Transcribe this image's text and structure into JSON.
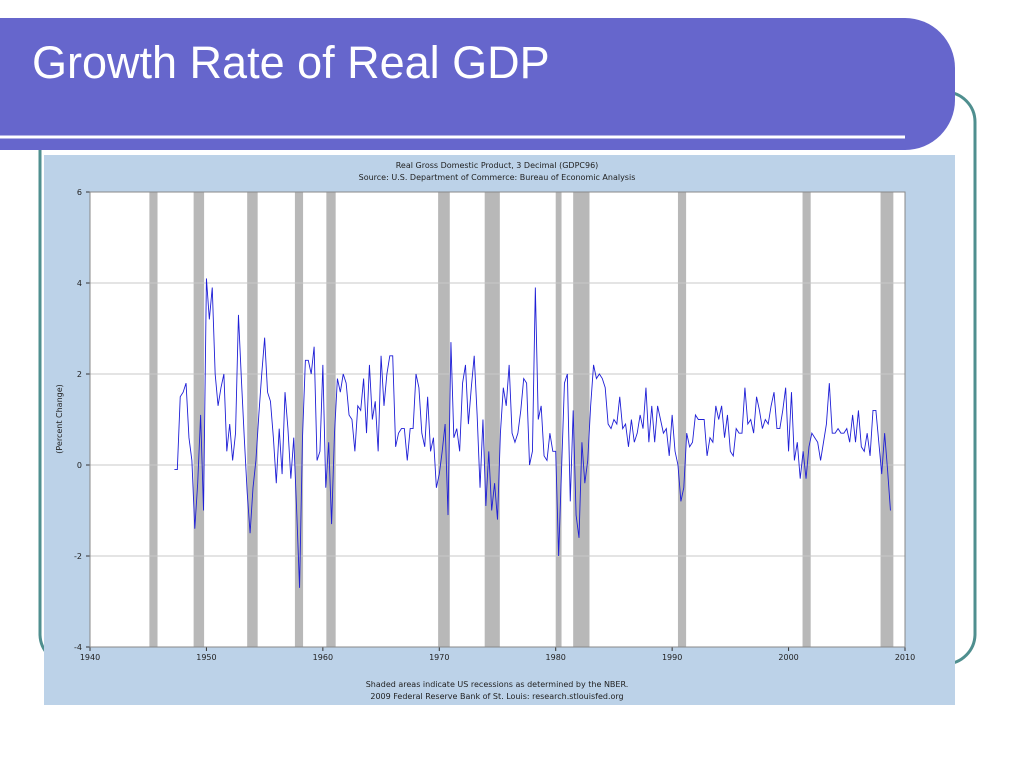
{
  "slide_title": "Growth Rate of Real GDP",
  "chart_data": {
    "type": "line",
    "title": "Real Gross Domestic Product, 3 Decimal (GDPC96)",
    "subtitle": "Source: U.S. Department of Commerce: Bureau of Economic Analysis",
    "y_label": "(Percent Change)",
    "footnote": "Shaded areas indicate US recessions as determined by the NBER.",
    "credit": "2009 Federal Reserve Bank of St. Louis: research.stlouisfed.org",
    "color": "#1f1fd6",
    "recession_color": "#b8b8b8",
    "grid": true,
    "xlim": [
      1940,
      2010
    ],
    "xticks": [
      1940,
      1950,
      1960,
      1970,
      1980,
      1990,
      2000,
      2010
    ],
    "ylim": [
      -4,
      6
    ],
    "yticks": [
      -4,
      -2,
      0,
      2,
      4,
      6
    ],
    "recessions": [
      [
        1945.1,
        1945.8
      ],
      [
        1948.9,
        1949.8
      ],
      [
        1953.5,
        1954.4
      ],
      [
        1957.6,
        1958.3
      ],
      [
        1960.3,
        1961.1
      ],
      [
        1969.9,
        1970.9
      ],
      [
        1973.9,
        1975.2
      ],
      [
        1980.0,
        1980.5
      ],
      [
        1981.5,
        1982.9
      ],
      [
        1990.5,
        1991.2
      ],
      [
        2001.2,
        2001.9
      ],
      [
        2007.9,
        2009.0
      ]
    ],
    "x": [
      1947.25,
      1947.5,
      1947.75,
      1948,
      1948.25,
      1948.5,
      1948.75,
      1949,
      1949.25,
      1949.5,
      1949.75,
      1950,
      1950.25,
      1950.5,
      1950.75,
      1951,
      1951.25,
      1951.5,
      1951.75,
      1952,
      1952.25,
      1952.5,
      1952.75,
      1953,
      1953.25,
      1953.5,
      1953.75,
      1954,
      1954.25,
      1954.5,
      1954.75,
      1955,
      1955.25,
      1955.5,
      1955.75,
      1956,
      1956.25,
      1956.5,
      1956.75,
      1957,
      1957.25,
      1957.5,
      1957.75,
      1958,
      1958.25,
      1958.5,
      1958.75,
      1959,
      1959.25,
      1959.5,
      1959.75,
      1960,
      1960.25,
      1960.5,
      1960.75,
      1961,
      1961.25,
      1961.5,
      1961.75,
      1962,
      1962.25,
      1962.5,
      1962.75,
      1963,
      1963.25,
      1963.5,
      1963.75,
      1964,
      1964.25,
      1964.5,
      1964.75,
      1965,
      1965.25,
      1965.5,
      1965.75,
      1966,
      1966.25,
      1966.5,
      1966.75,
      1967,
      1967.25,
      1967.5,
      1967.75,
      1968,
      1968.25,
      1968.5,
      1968.75,
      1969,
      1969.25,
      1969.5,
      1969.75,
      1970,
      1970.25,
      1970.5,
      1970.75,
      1971,
      1971.25,
      1971.5,
      1971.75,
      1972,
      1972.25,
      1972.5,
      1972.75,
      1973,
      1973.25,
      1973.5,
      1973.75,
      1974,
      1974.25,
      1974.5,
      1974.75,
      1975,
      1975.25,
      1975.5,
      1975.75,
      1976,
      1976.25,
      1976.5,
      1976.75,
      1977,
      1977.25,
      1977.5,
      1977.75,
      1978,
      1978.25,
      1978.5,
      1978.75,
      1979,
      1979.25,
      1979.5,
      1979.75,
      1980,
      1980.25,
      1980.5,
      1980.75,
      1981,
      1981.25,
      1981.5,
      1981.75,
      1982,
      1982.25,
      1982.5,
      1982.75,
      1983,
      1983.25,
      1983.5,
      1983.75,
      1984,
      1984.25,
      1984.5,
      1984.75,
      1985,
      1985.25,
      1985.5,
      1985.75,
      1986,
      1986.25,
      1986.5,
      1986.75,
      1987,
      1987.25,
      1987.5,
      1987.75,
      1988,
      1988.25,
      1988.5,
      1988.75,
      1989,
      1989.25,
      1989.5,
      1989.75,
      1990,
      1990.25,
      1990.5,
      1990.75,
      1991,
      1991.25,
      1991.5,
      1991.75,
      1992,
      1992.25,
      1992.5,
      1992.75,
      1993,
      1993.25,
      1993.5,
      1993.75,
      1994,
      1994.25,
      1994.5,
      1994.75,
      1995,
      1995.25,
      1995.5,
      1995.75,
      1996,
      1996.25,
      1996.5,
      1996.75,
      1997,
      1997.25,
      1997.5,
      1997.75,
      1998,
      1998.25,
      1998.5,
      1998.75,
      1999,
      1999.25,
      1999.5,
      1999.75,
      2000,
      2000.25,
      2000.5,
      2000.75,
      2001,
      2001.25,
      2001.5,
      2001.75,
      2002,
      2002.25,
      2002.5,
      2002.75,
      2003,
      2003.25,
      2003.5,
      2003.75,
      2004,
      2004.25,
      2004.5,
      2004.75,
      2005,
      2005.25,
      2005.5,
      2005.75,
      2006,
      2006.25,
      2006.5,
      2006.75,
      2007,
      2007.25,
      2007.5,
      2007.75,
      2008,
      2008.25,
      2008.5,
      2008.75
    ],
    "values": [
      -0.1,
      -0.1,
      1.5,
      1.6,
      1.8,
      0.6,
      0.1,
      -1.4,
      -0.4,
      1.1,
      -1.0,
      4.1,
      3.2,
      3.9,
      2.0,
      1.3,
      1.7,
      2.0,
      0.3,
      0.9,
      0.1,
      0.7,
      3.3,
      1.9,
      0.6,
      -0.6,
      -1.5,
      -0.5,
      0.1,
      1.1,
      2.0,
      2.8,
      1.6,
      1.4,
      0.6,
      -0.4,
      0.8,
      -0.2,
      1.6,
      0.8,
      -0.3,
      0.6,
      -1.0,
      -2.7,
      0.6,
      2.3,
      2.3,
      2.0,
      2.6,
      0.1,
      0.3,
      2.2,
      -0.5,
      0.5,
      -1.3,
      0.7,
      1.9,
      1.6,
      2.0,
      1.8,
      1.1,
      1.0,
      0.3,
      1.3,
      1.2,
      1.9,
      0.7,
      2.2,
      1.0,
      1.4,
      0.3,
      2.4,
      1.3,
      2.0,
      2.4,
      2.4,
      0.4,
      0.7,
      0.8,
      0.8,
      0.1,
      0.8,
      0.8,
      2.0,
      1.7,
      0.7,
      0.4,
      1.5,
      0.3,
      0.6,
      -0.5,
      -0.2,
      0.3,
      0.9,
      -1.1,
      2.7,
      0.6,
      0.8,
      0.3,
      1.8,
      2.2,
      0.9,
      1.7,
      2.4,
      1.1,
      -0.5,
      1.0,
      -0.9,
      0.3,
      -1.0,
      -0.4,
      -1.2,
      0.7,
      1.7,
      1.3,
      2.2,
      0.7,
      0.5,
      0.7,
      1.2,
      1.9,
      1.8,
      0.0,
      0.3,
      3.9,
      1.0,
      1.3,
      0.2,
      0.1,
      0.7,
      0.3,
      0.3,
      -2.0,
      -0.1,
      1.8,
      2.0,
      -0.8,
      1.2,
      -1.1,
      -1.6,
      0.5,
      -0.4,
      0.1,
      1.3,
      2.2,
      1.9,
      2.0,
      1.9,
      1.7,
      0.9,
      0.8,
      1.0,
      0.9,
      1.5,
      0.8,
      0.9,
      0.4,
      1.0,
      0.5,
      0.7,
      1.1,
      0.8,
      1.7,
      0.5,
      1.3,
      0.5,
      1.3,
      1.0,
      0.7,
      0.8,
      0.2,
      1.1,
      0.3,
      0.0,
      -0.8,
      -0.5,
      0.7,
      0.4,
      0.5,
      1.1,
      1.0,
      1.0,
      1.0,
      0.2,
      0.6,
      0.5,
      1.3,
      1.0,
      1.3,
      0.6,
      1.1,
      0.3,
      0.2,
      0.8,
      0.7,
      0.7,
      1.7,
      0.9,
      1.0,
      0.7,
      1.5,
      1.2,
      0.8,
      1.0,
      0.9,
      1.3,
      1.6,
      0.8,
      0.8,
      1.2,
      1.7,
      0.3,
      1.6,
      0.1,
      0.5,
      -0.3,
      0.3,
      -0.3,
      0.4,
      0.7,
      0.6,
      0.5,
      0.1,
      0.5,
      0.9,
      1.8,
      0.7,
      0.7,
      0.8,
      0.7,
      0.7,
      0.8,
      0.5,
      1.1,
      0.5,
      1.2,
      0.4,
      0.3,
      0.7,
      0.2,
      1.2,
      1.2,
      0.5,
      -0.2,
      0.7,
      -0.1,
      -1.0
    ]
  }
}
